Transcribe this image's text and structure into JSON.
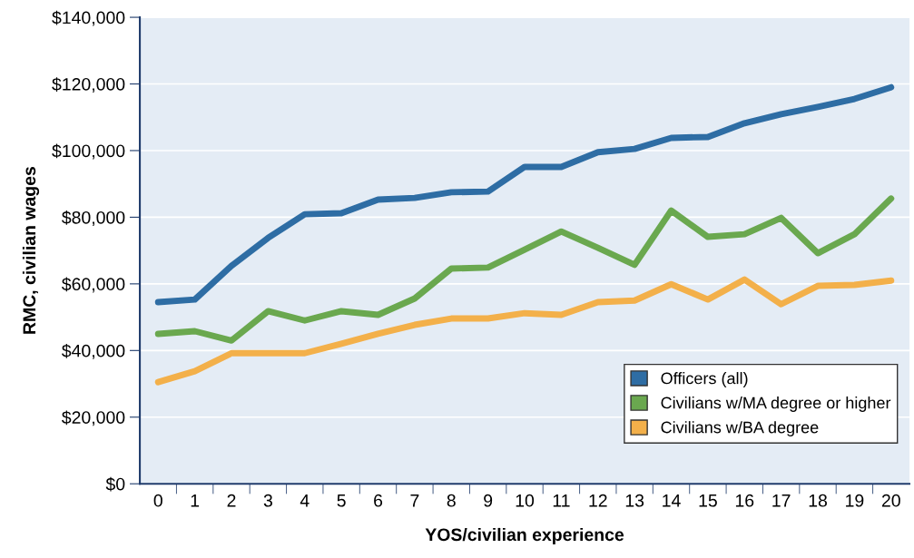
{
  "chart_data": {
    "type": "line",
    "xlabel": "YOS/civilian experience",
    "ylabel": "RMC, civilian wages",
    "categories": [
      "0",
      "1",
      "2",
      "3",
      "4",
      "5",
      "6",
      "7",
      "8",
      "9",
      "10",
      "11",
      "12",
      "13",
      "14",
      "15",
      "16",
      "17",
      "18",
      "19",
      "20"
    ],
    "ylim": [
      0,
      140000
    ],
    "yticks": [
      {
        "value": 0,
        "label": "$0"
      },
      {
        "value": 20000,
        "label": "$20,000"
      },
      {
        "value": 40000,
        "label": "$40,000"
      },
      {
        "value": 60000,
        "label": "$60,000"
      },
      {
        "value": 80000,
        "label": "$80,000"
      },
      {
        "value": 100000,
        "label": "$100,000"
      },
      {
        "value": 120000,
        "label": "$120,000"
      },
      {
        "value": 140000,
        "label": "$140,000"
      }
    ],
    "grid": "y",
    "legend": "bottom right",
    "marker": "none",
    "line_style": "solid",
    "series": [
      {
        "name": "Officers (all)",
        "color": "#2e6da4",
        "values": [
          54500,
          55300,
          65400,
          73800,
          80900,
          81200,
          85300,
          85800,
          87500,
          87700,
          95100,
          95100,
          99500,
          100500,
          103800,
          104100,
          108200,
          110900,
          113100,
          115500,
          119000
        ]
      },
      {
        "name": "Civilians w/MA degree or higher",
        "color": "#6aa84f",
        "values": [
          45000,
          45800,
          43000,
          51800,
          49000,
          51800,
          50700,
          55600,
          64600,
          64900,
          70300,
          75700,
          70800,
          65700,
          82000,
          74100,
          74900,
          79800,
          69200,
          74900,
          85600
        ]
      },
      {
        "name": "Civilians w/BA degree",
        "color": "#f3b04a",
        "values": [
          30500,
          33800,
          39200,
          39200,
          39200,
          42000,
          45000,
          47700,
          49600,
          49600,
          51200,
          50700,
          54500,
          55000,
          59900,
          55300,
          61300,
          53900,
          59400,
          59700,
          61000
        ]
      }
    ]
  }
}
